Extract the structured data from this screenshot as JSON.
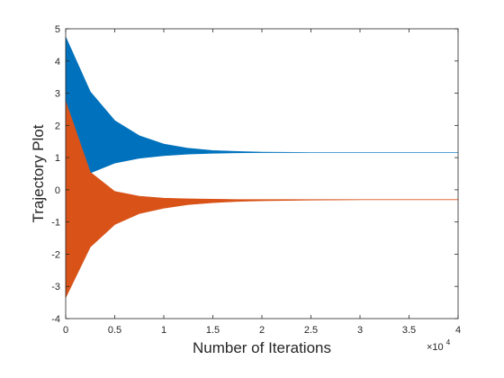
{
  "chart_data": {
    "type": "area",
    "xlabel": "Number of Iterations",
    "ylabel": "Trajectory Plot",
    "x_exponent_label": "×10",
    "x_exponent": "4",
    "xlim": [
      0,
      4
    ],
    "ylim": [
      -4,
      5
    ],
    "x_scale_factor": 10000,
    "x_ticks": [
      "0",
      "0.5",
      "1",
      "1.5",
      "2",
      "2.5",
      "3",
      "3.5",
      "4"
    ],
    "y_ticks": [
      "5",
      "4",
      "3",
      "2",
      "1",
      "0",
      "-1",
      "-2",
      "-3",
      "-4"
    ],
    "grid": false,
    "series": [
      {
        "color": "#0072BD",
        "x": [
          0,
          0.25,
          0.5,
          0.75,
          1.0,
          1.25,
          1.5,
          1.75,
          2.0,
          2.5,
          3.0,
          3.5,
          4.0
        ],
        "upper": [
          4.75,
          3.05,
          2.15,
          1.68,
          1.42,
          1.29,
          1.22,
          1.19,
          1.17,
          1.16,
          1.16,
          1.16,
          1.16
        ],
        "lower": [
          -0.95,
          0.52,
          0.83,
          0.98,
          1.06,
          1.11,
          1.135,
          1.147,
          1.153,
          1.157,
          1.158,
          1.158,
          1.158
        ]
      },
      {
        "color": "#D95319",
        "x": [
          0,
          0.25,
          0.5,
          0.75,
          1.0,
          1.25,
          1.5,
          1.75,
          2.0,
          2.5,
          3.0,
          3.5,
          4.0
        ],
        "upper": [
          2.75,
          0.55,
          -0.05,
          -0.2,
          -0.26,
          -0.28,
          -0.29,
          -0.3,
          -0.3,
          -0.3,
          -0.3,
          -0.3,
          -0.3
        ],
        "lower": [
          -3.35,
          -1.78,
          -1.08,
          -0.74,
          -0.57,
          -0.46,
          -0.4,
          -0.36,
          -0.34,
          -0.32,
          -0.31,
          -0.31,
          -0.31
        ]
      }
    ]
  }
}
